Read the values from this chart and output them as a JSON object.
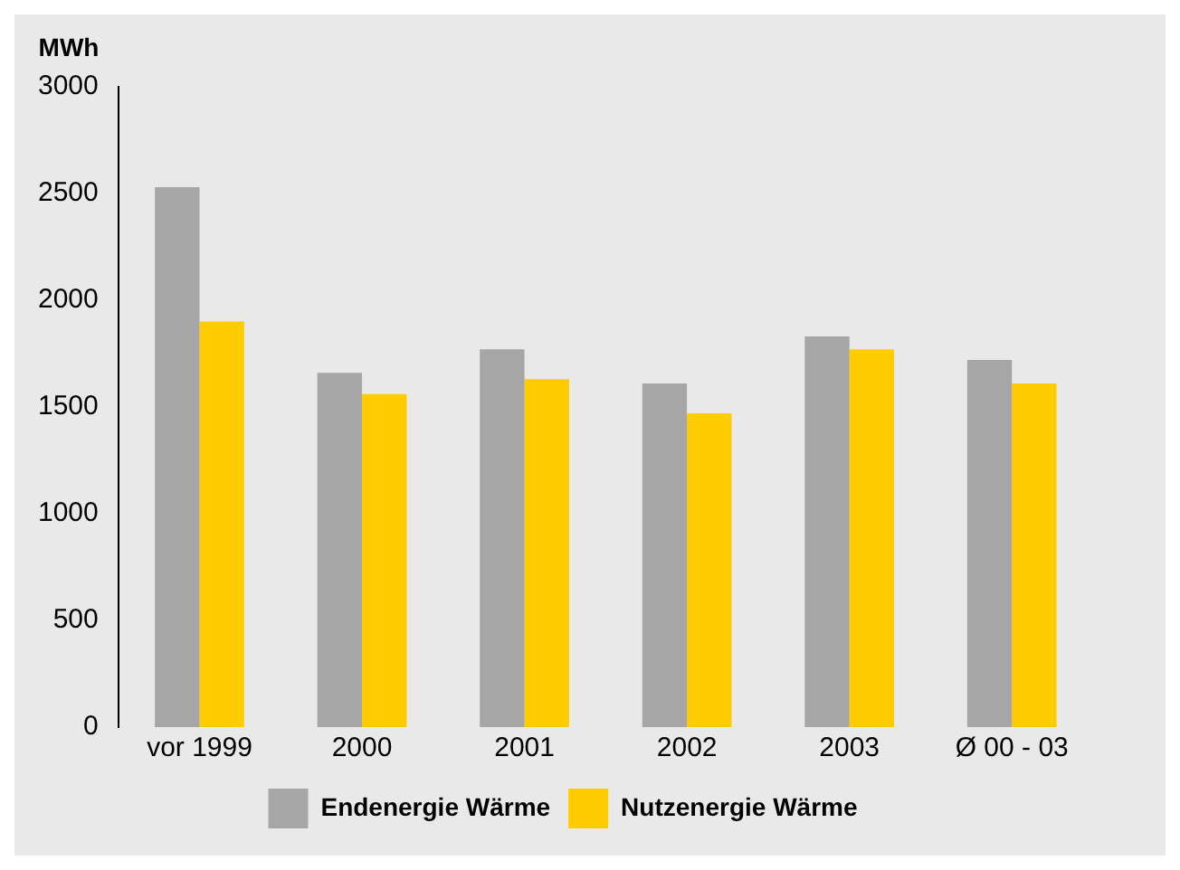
{
  "chart_data": {
    "type": "bar",
    "ylabel": "MWh",
    "categories": [
      "vor 1999",
      "2000",
      "2001",
      "2002",
      "2003",
      "Ø 00 - 03"
    ],
    "series": [
      {
        "name": "Endenergie Wärme",
        "color": "#a6a6a6",
        "values": [
          2530,
          1660,
          1770,
          1610,
          1830,
          1720
        ]
      },
      {
        "name": "Nutzenergie Wärme",
        "color": "#ffcc00",
        "values": [
          1900,
          1560,
          1630,
          1470,
          1770,
          1610
        ]
      }
    ],
    "ylim": [
      0,
      3000
    ],
    "yticks": [
      0,
      500,
      1000,
      1500,
      2000,
      2500,
      3000
    ],
    "grid": false,
    "legend": "bottom"
  }
}
